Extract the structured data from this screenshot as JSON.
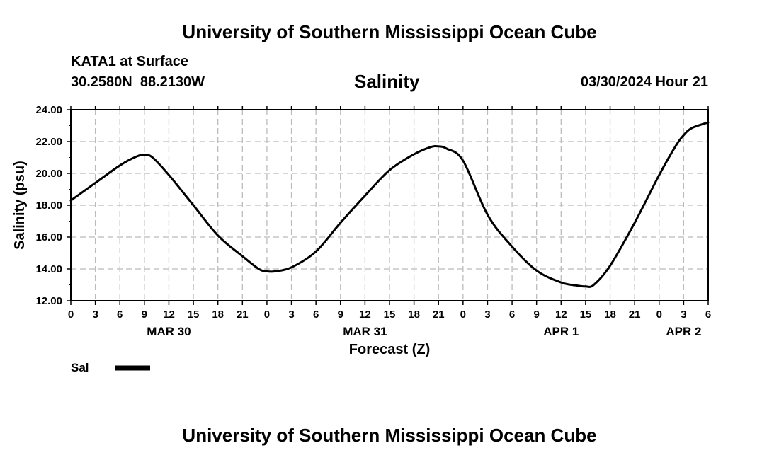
{
  "page_title": "University of Southern Mississippi Ocean Cube",
  "footer_title": "University of Southern Mississippi Ocean Cube",
  "station": {
    "name": "KATA1 at Surface",
    "coords": "30.2580N  88.2130W",
    "datetime": "03/30/2024 Hour 21"
  },
  "chart_data": {
    "type": "line",
    "title": "Salinity",
    "xlabel": "Forecast (Z)",
    "ylabel": "Salinity (psu)",
    "ylim": [
      12,
      24
    ],
    "yticks": [
      "12.00",
      "14.00",
      "16.00",
      "18.00",
      "20.00",
      "22.00",
      "24.00"
    ],
    "xlim": [
      0,
      78
    ],
    "xtick_labels": [
      "0",
      "3",
      "6",
      "9",
      "12",
      "15",
      "18",
      "21",
      "0",
      "3",
      "6",
      "9",
      "12",
      "15",
      "18",
      "21",
      "0",
      "3",
      "6",
      "9",
      "12",
      "15",
      "18",
      "21",
      "0",
      "3",
      "6"
    ],
    "date_labels": [
      {
        "hour": 12,
        "label": "MAR 30"
      },
      {
        "hour": 36,
        "label": "MAR 31"
      },
      {
        "hour": 60,
        "label": "APR 1"
      },
      {
        "hour": 75,
        "label": "APR 2"
      }
    ],
    "grid": true,
    "legend": [
      {
        "name": "Sal",
        "color": "#000000"
      }
    ],
    "series": [
      {
        "name": "Sal",
        "x": [
          0,
          3,
          6,
          8,
          9,
          10,
          12,
          15,
          18,
          21,
          23,
          24,
          25,
          27,
          30,
          33,
          36,
          39,
          42,
          44,
          45,
          46,
          48,
          51,
          54,
          57,
          60,
          62,
          63,
          64,
          66,
          69,
          72,
          74,
          75,
          76,
          78
        ],
        "values": [
          18.3,
          19.4,
          20.5,
          21.05,
          21.15,
          21.0,
          19.9,
          18.0,
          16.1,
          14.8,
          14.0,
          13.85,
          13.85,
          14.1,
          15.1,
          16.9,
          18.6,
          20.2,
          21.2,
          21.65,
          21.7,
          21.55,
          20.8,
          17.4,
          15.4,
          13.9,
          13.15,
          12.95,
          12.9,
          13.0,
          14.2,
          16.9,
          19.9,
          21.7,
          22.4,
          22.85,
          23.2
        ]
      }
    ]
  }
}
